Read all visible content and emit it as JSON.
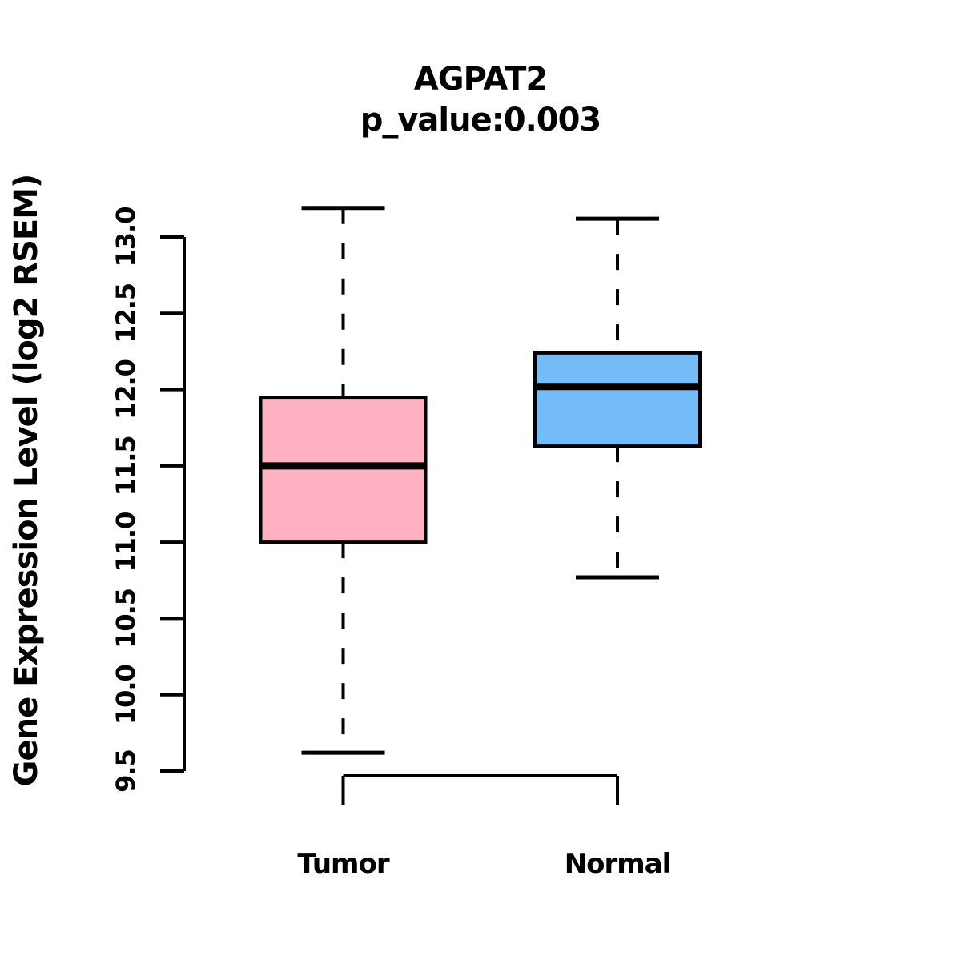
{
  "chart_data": {
    "type": "boxplot",
    "title": "AGPAT2",
    "subtitle": "p_value:0.003",
    "ylabel": "Gene Expression Level (log2 RSEM)",
    "xlabel": "",
    "ylim": [
      9.5,
      13.0
    ],
    "yticks": [
      9.5,
      10.0,
      10.5,
      11.0,
      11.5,
      12.0,
      12.5,
      13.0
    ],
    "ytick_labels": [
      "9.5",
      "10.0",
      "10.5",
      "11.0",
      "11.5",
      "12.0",
      "12.5",
      "13.0"
    ],
    "grid": "off",
    "legend": "none",
    "background_color": "#ffffff",
    "axis_color": "#000000",
    "groups": [
      {
        "label": "Tumor",
        "fill_color": "#ffb1c1",
        "border_color": "#000000",
        "median_color": "#000000",
        "whisker_low": 9.62,
        "q1": 11.0,
        "median": 11.5,
        "q3": 11.95,
        "whisker_high": 13.19
      },
      {
        "label": "Normal",
        "fill_color": "#73bcf7",
        "border_color": "#000000",
        "median_color": "#000000",
        "whisker_low": 10.77,
        "q1": 11.63,
        "median": 12.02,
        "q3": 12.24,
        "whisker_high": 13.12
      }
    ]
  }
}
